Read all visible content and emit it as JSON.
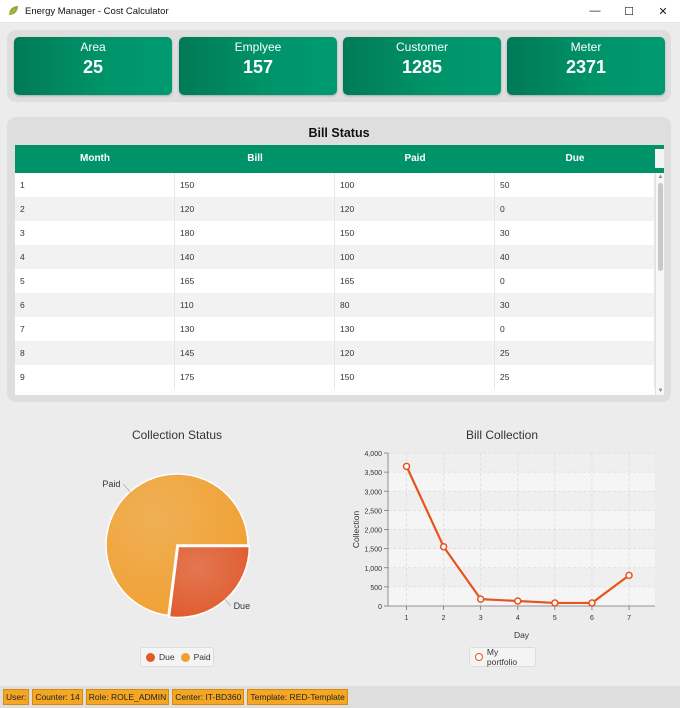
{
  "window": {
    "title": "Energy Manager - Cost Calculator",
    "controls": {
      "minimize": "—",
      "maximize": "☐",
      "close": "✕"
    }
  },
  "cards": [
    {
      "label": "Area",
      "value": "25"
    },
    {
      "label": "Emplyee",
      "value": "157"
    },
    {
      "label": "Customer",
      "value": "1285"
    },
    {
      "label": "Meter",
      "value": "2371"
    }
  ],
  "bill_status": {
    "title": "Bill Status",
    "columns": [
      "Month",
      "Bill",
      "Paid",
      "Due"
    ],
    "rows": [
      [
        "1",
        "150",
        "100",
        "50"
      ],
      [
        "2",
        "120",
        "120",
        "0"
      ],
      [
        "3",
        "180",
        "150",
        "30"
      ],
      [
        "4",
        "140",
        "100",
        "40"
      ],
      [
        "5",
        "165",
        "165",
        "0"
      ],
      [
        "6",
        "110",
        "80",
        "30"
      ],
      [
        "7",
        "130",
        "130",
        "0"
      ],
      [
        "8",
        "145",
        "120",
        "25"
      ],
      [
        "9",
        "175",
        "150",
        "25"
      ]
    ]
  },
  "chart_data": [
    {
      "type": "pie",
      "title": "Collection Status",
      "slices": [
        {
          "label": "Due",
          "value": 27,
          "color": "#e05a2b"
        },
        {
          "label": "Paid",
          "value": 73,
          "color": "#f0a030"
        }
      ],
      "legend": [
        "Due",
        "Paid"
      ],
      "legend_position": "bottom"
    },
    {
      "type": "line",
      "title": "Bill Collection",
      "xlabel": "Day",
      "ylabel": "Collection",
      "x": [
        1,
        2,
        3,
        4,
        5,
        6,
        7
      ],
      "series": [
        {
          "name": "My portfolio",
          "values": [
            3650,
            1550,
            180,
            130,
            80,
            80,
            800
          ],
          "color": "#e8541e"
        }
      ],
      "ylim": [
        0,
        4000
      ],
      "yticks": [
        "0",
        "500",
        "1,000",
        "1,500",
        "2,000",
        "2,500",
        "3,000",
        "3,500",
        "4,000"
      ],
      "xticks": [
        "1",
        "2",
        "3",
        "4",
        "5",
        "6",
        "7"
      ],
      "grid": true,
      "legend_position": "bottom"
    }
  ],
  "status_bar": [
    "User:",
    "Counter: 14",
    "Role: ROLE_ADMIN",
    "Center: IT-BD360",
    "Template: RED-Template"
  ]
}
